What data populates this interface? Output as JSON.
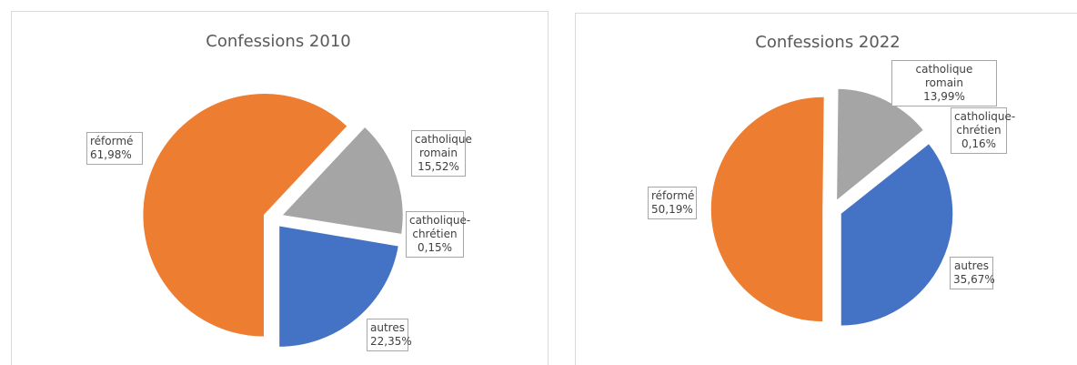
{
  "chart_data": [
    {
      "type": "pie",
      "title": "Confessions 2010",
      "categories": [
        "réformé",
        "catholique romain",
        "catholique-chrétien",
        "autres"
      ],
      "values": [
        61.98,
        15.52,
        0.15,
        22.35
      ],
      "value_labels": [
        "61,98%",
        "15,52%",
        "0,15%",
        "22,35%"
      ],
      "colors": [
        "#ED7D31",
        "#A5A5A5",
        "#FFC000",
        "#4472C4"
      ]
    },
    {
      "type": "pie",
      "title": "Confessions 2022",
      "categories": [
        "réformé",
        "catholique romain",
        "catholique-chrétien",
        "autres"
      ],
      "values": [
        50.19,
        13.99,
        0.16,
        35.67
      ],
      "value_labels": [
        "50,19%",
        "13,99%",
        "0,16%",
        "35,67%"
      ],
      "colors": [
        "#ED7D31",
        "#A5A5A5",
        "#FFC000",
        "#4472C4"
      ]
    }
  ]
}
